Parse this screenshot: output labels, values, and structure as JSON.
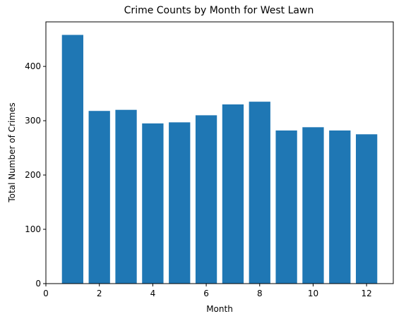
{
  "chart_data": {
    "type": "bar",
    "title": "Crime Counts by Month for West Lawn",
    "xlabel": "Month",
    "ylabel": "Total Number of Crimes",
    "x": [
      1,
      2,
      3,
      4,
      5,
      6,
      7,
      8,
      9,
      10,
      11,
      12
    ],
    "values": [
      458,
      318,
      320,
      295,
      297,
      310,
      330,
      335,
      282,
      288,
      282,
      275
    ],
    "xlim": [
      0,
      13
    ],
    "ylim": [
      0,
      482
    ],
    "xticks": [
      0,
      2,
      4,
      6,
      8,
      10,
      12
    ],
    "yticks": [
      0,
      100,
      200,
      300,
      400
    ],
    "grid": false,
    "legend": "none",
    "bar_color": "#1f77b4"
  }
}
